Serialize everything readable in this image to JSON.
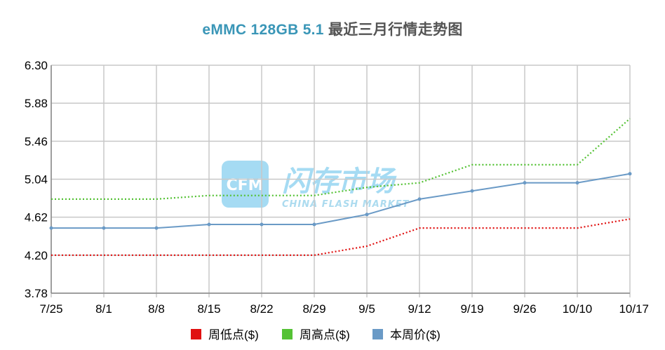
{
  "chart_data": {
    "type": "line",
    "title_main": "eMMC 128GB 5.1",
    "title_sub": "最近三月行情走势图",
    "categories": [
      "7/25",
      "8/1",
      "8/8",
      "8/15",
      "8/22",
      "8/29",
      "9/5",
      "9/12",
      "9/19",
      "9/26",
      "10/10",
      "10/17"
    ],
    "yticks": [
      "3.78",
      "4.20",
      "4.62",
      "5.04",
      "5.46",
      "5.88",
      "6.30"
    ],
    "ylim": [
      3.78,
      6.3
    ],
    "grid": true,
    "legend_position": "bottom",
    "series": [
      {
        "name": "周低点($)",
        "color": "#e01010",
        "style": "dotted",
        "values": [
          4.2,
          4.2,
          4.2,
          4.2,
          4.2,
          4.2,
          4.3,
          4.5,
          4.5,
          4.5,
          4.5,
          4.6
        ]
      },
      {
        "name": "周高点($)",
        "color": "#55c235",
        "style": "dotted",
        "values": [
          4.82,
          4.82,
          4.82,
          4.86,
          4.86,
          4.86,
          4.95,
          5.0,
          5.2,
          5.2,
          5.2,
          5.71
        ]
      },
      {
        "name": "本周价($)",
        "color": "#6a9ac6",
        "style": "solid",
        "values": [
          4.5,
          4.5,
          4.5,
          4.54,
          4.54,
          4.54,
          4.65,
          4.82,
          4.91,
          5.0,
          5.0,
          5.1
        ]
      }
    ]
  },
  "watermark": {
    "logo_text": "CFM",
    "name_cn": "闪存市场",
    "name_en": "CHINA FLASH MARKET"
  }
}
